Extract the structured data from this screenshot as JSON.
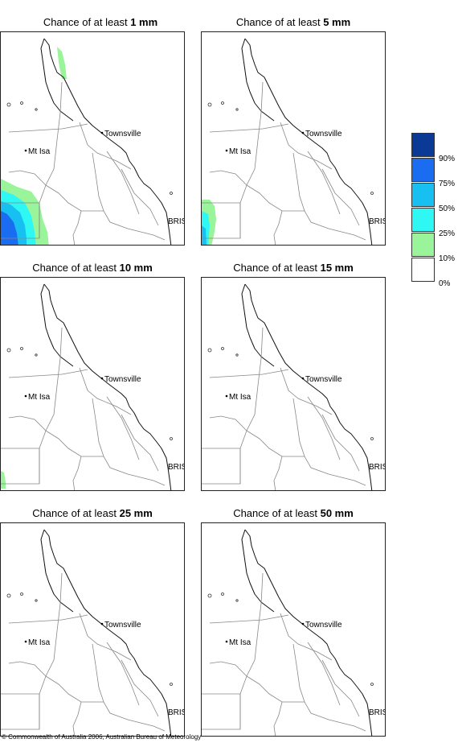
{
  "panels": [
    {
      "prefix": "Chance of at least ",
      "amount": "1 mm"
    },
    {
      "prefix": "Chance of at least ",
      "amount": "5 mm"
    },
    {
      "prefix": "Chance of at least ",
      "amount": "10 mm"
    },
    {
      "prefix": "Chance of at least ",
      "amount": "15 mm"
    },
    {
      "prefix": "Chance of at least ",
      "amount": "25 mm"
    },
    {
      "prefix": "Chance of at least ",
      "amount": "50 mm"
    }
  ],
  "places": {
    "townsville": "Townsville",
    "mt_isa": "Mt Isa",
    "bris": "BRIS"
  },
  "legend": {
    "labels": [
      "90%",
      "75%",
      "50%",
      "25%",
      "10%",
      "0%"
    ],
    "colors": [
      "#0a3a96",
      "#1a6cf0",
      "#17c0f0",
      "#2ff7f3",
      "#99f49a",
      "#ffffff"
    ]
  },
  "footer": "© Commonwealth of Australia 2006, Australian Bureau of Meteorology"
}
